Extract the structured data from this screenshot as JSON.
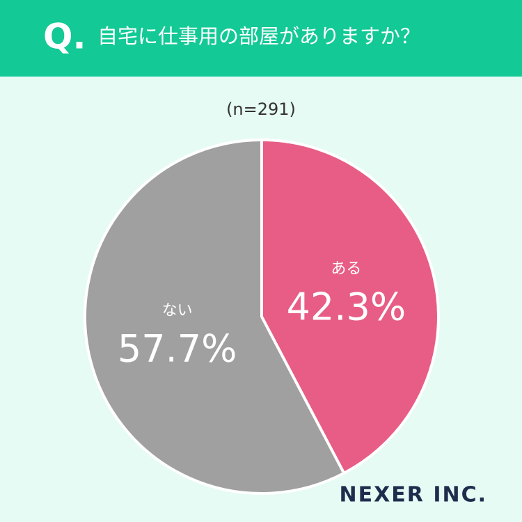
{
  "chart_data": {
    "type": "pie",
    "question_mark": "Q.",
    "title": "自宅に仕事用の部屋がありますか？",
    "subtitle": "(n=291)",
    "categories": [
      "ある",
      "ない"
    ],
    "values": [
      42.3,
      57.7
    ],
    "value_labels": [
      "42.3%",
      "57.7%"
    ],
    "colors": [
      "#e85d85",
      "#a0a0a0"
    ],
    "brand": "NEXER INC."
  }
}
